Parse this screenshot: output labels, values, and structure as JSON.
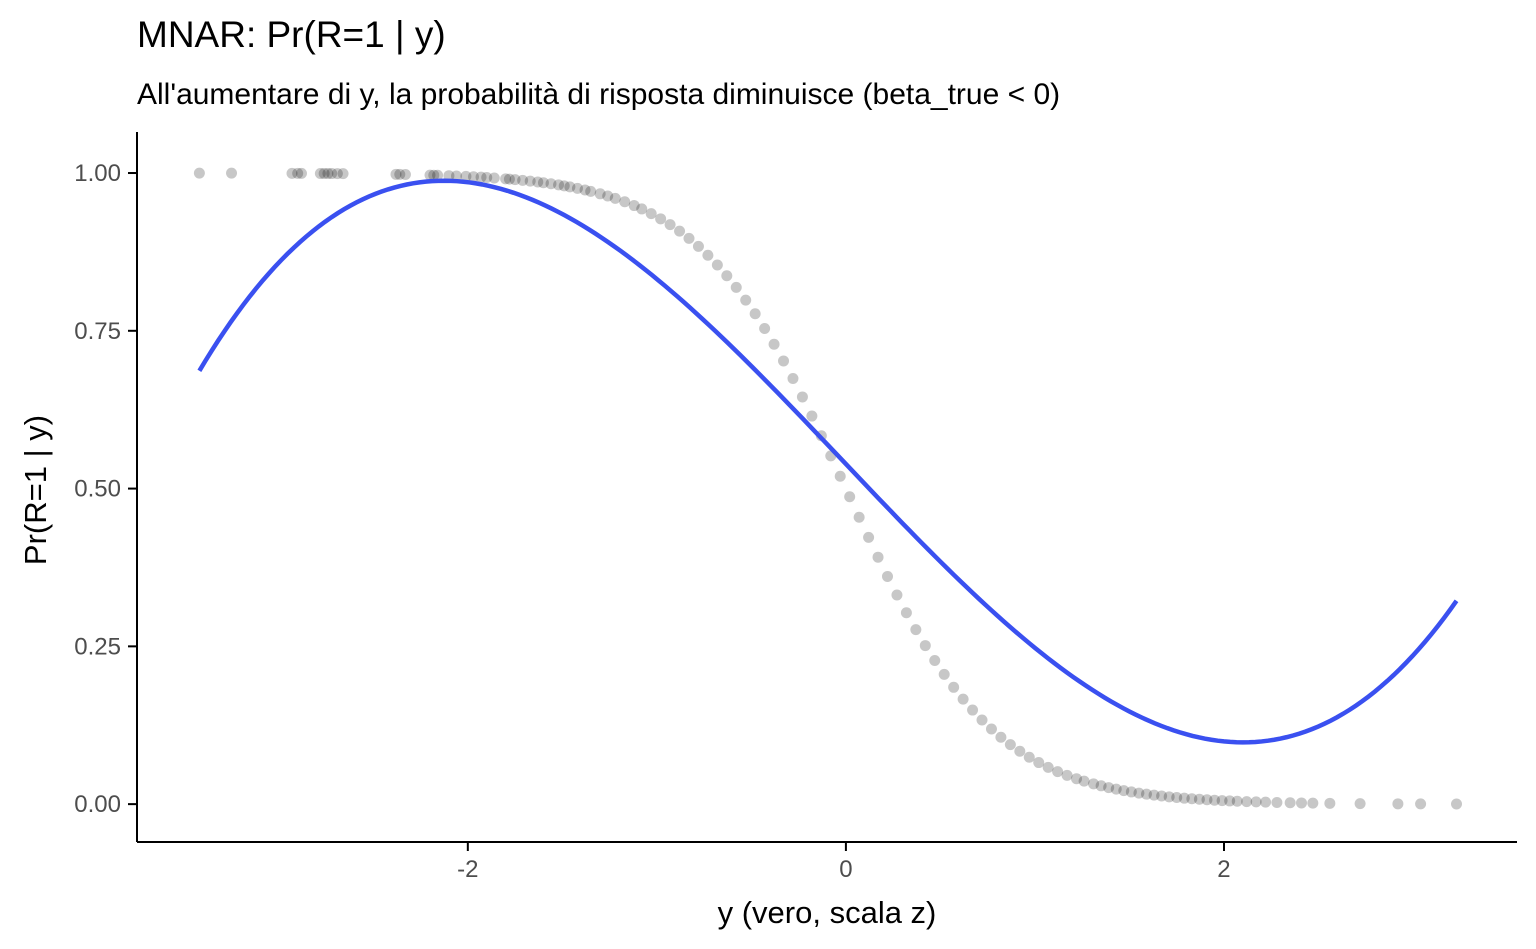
{
  "chart_data": {
    "type": "scatter",
    "title": "MNAR: Pr(R=1 | y)",
    "subtitle": "All'aumentare di y, la probabilità di risposta diminuisce (beta_true < 0)",
    "xlabel": "y (vero, scala z)",
    "ylabel": "Pr(R=1 | y)",
    "xlim": [
      -3.75,
      3.55
    ],
    "ylim": [
      -0.06,
      1.065
    ],
    "x_ticks": [
      -2,
      0,
      2
    ],
    "x_tick_labels": [
      "-2",
      "0",
      "2"
    ],
    "y_ticks": [
      0,
      0.25,
      0.5,
      0.75,
      1.0
    ],
    "y_tick_labels": [
      "0.00",
      "0.25",
      "0.50",
      "0.75",
      "1.00"
    ],
    "grid": false,
    "points_model": {
      "function": "logistic",
      "intercept": 0.0,
      "slope": -2.6
    },
    "points_x": [
      -3.42,
      -3.25,
      -2.93,
      -2.9,
      -2.88,
      -2.78,
      -2.76,
      -2.74,
      -2.72,
      -2.69,
      -2.66,
      -2.38,
      -2.36,
      -2.33,
      -2.2,
      -2.18,
      -2.16,
      -2.1,
      -2.06,
      -2.01,
      -1.97,
      -1.93,
      -1.9,
      -1.86,
      -1.8,
      -1.78,
      -1.75,
      -1.71,
      -1.67,
      -1.63,
      -1.6,
      -1.56,
      -1.52,
      -1.49,
      -1.46,
      -1.42,
      -1.38,
      -1.35,
      -1.3,
      -1.26,
      -1.22,
      -1.17,
      -1.12,
      -1.08,
      -1.03,
      -0.98,
      -0.93,
      -0.88,
      -0.83,
      -0.78,
      -0.73,
      -0.68,
      -0.63,
      -0.58,
      -0.53,
      -0.48,
      -0.43,
      -0.38,
      -0.33,
      -0.28,
      -0.23,
      -0.18,
      -0.13,
      -0.08,
      -0.03,
      0.02,
      0.07,
      0.12,
      0.17,
      0.22,
      0.27,
      0.32,
      0.37,
      0.42,
      0.47,
      0.52,
      0.57,
      0.62,
      0.67,
      0.72,
      0.77,
      0.82,
      0.87,
      0.92,
      0.97,
      1.02,
      1.07,
      1.12,
      1.17,
      1.22,
      1.26,
      1.31,
      1.35,
      1.39,
      1.43,
      1.47,
      1.51,
      1.55,
      1.59,
      1.63,
      1.67,
      1.71,
      1.75,
      1.79,
      1.83,
      1.87,
      1.91,
      1.95,
      1.99,
      2.03,
      2.07,
      2.12,
      2.17,
      2.22,
      2.28,
      2.35,
      2.41,
      2.47,
      2.56,
      2.72,
      2.92,
      3.04,
      3.23
    ],
    "series": [
      {
        "color": "#3a50f0",
        "coefficients": [
          0.5389,
          -0.31575,
          0.00088,
          0.02356
        ],
        "x_range": [
          -3.42,
          3.23
        ]
      }
    ],
    "point_color": "#000000",
    "point_opacity": 0.22
  }
}
